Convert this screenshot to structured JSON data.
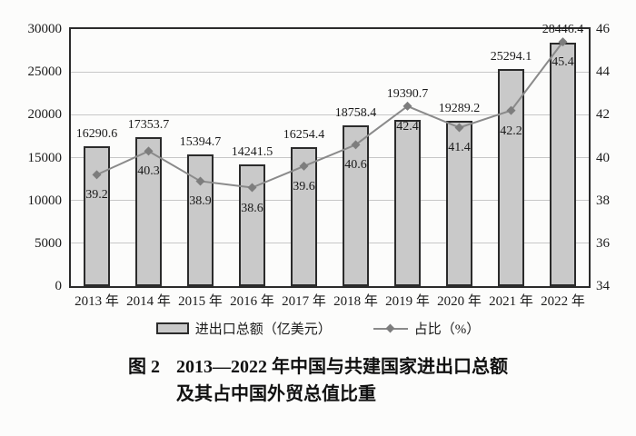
{
  "figure": {
    "background": "#fcfcfb",
    "caption": {
      "label": "图 2",
      "line1": "2013—2022 年中国与共建国家进出口总额",
      "line2": "及其占中国外贸总值比重"
    },
    "legend": {
      "bar_label": "进出口总额（亿美元）",
      "line_label": "占比（%）"
    }
  },
  "chart_data": {
    "type": "bar",
    "subtype": "bar + line combo with dual y-axes",
    "title": "图 2 2013—2022 年中国与共建国家进出口总额及其占中国外贸总值比重",
    "categories": [
      "2013 年",
      "2014 年",
      "2015 年",
      "2016 年",
      "2017 年",
      "2018 年",
      "2019 年",
      "2020 年",
      "2021 年",
      "2022 年"
    ],
    "series": [
      {
        "name": "进出口总额（亿美元）",
        "type": "bar",
        "axis": "left",
        "values": [
          16290.6,
          17353.7,
          15394.7,
          14241.5,
          16254.4,
          18758.4,
          19390.7,
          19289.2,
          25294.1,
          28446.4
        ]
      },
      {
        "name": "占比（%）",
        "type": "line",
        "axis": "right",
        "values": [
          39.2,
          40.3,
          38.9,
          38.6,
          39.6,
          40.6,
          42.4,
          41.4,
          42.2,
          45.4
        ]
      }
    ],
    "left_axis": {
      "min": 0,
      "max": 30000,
      "tick_step": 5000,
      "ticks": [
        "0",
        "5000",
        "10000",
        "15000",
        "20000",
        "25000",
        "30000"
      ]
    },
    "right_axis": {
      "min": 34,
      "max": 46,
      "tick_step": 2,
      "ticks": [
        "34",
        "36",
        "38",
        "40",
        "42",
        "44",
        "46"
      ]
    },
    "grid": "horizontal gridlines at left-axis ticks, plot framed by full border",
    "legend_position": "bottom",
    "data_labels": "bar values above bars, line percentages below markers",
    "colors": {
      "bar_fill": "#c9c9c9",
      "bar_border": "#2b2b2b",
      "line": "#8a8a8a",
      "marker": "#7d7d7d",
      "grid": "#c7c7c7",
      "axis_frame": "#2b2b2b",
      "text": "#1b1b1b",
      "background": "#fcfcfb"
    }
  }
}
